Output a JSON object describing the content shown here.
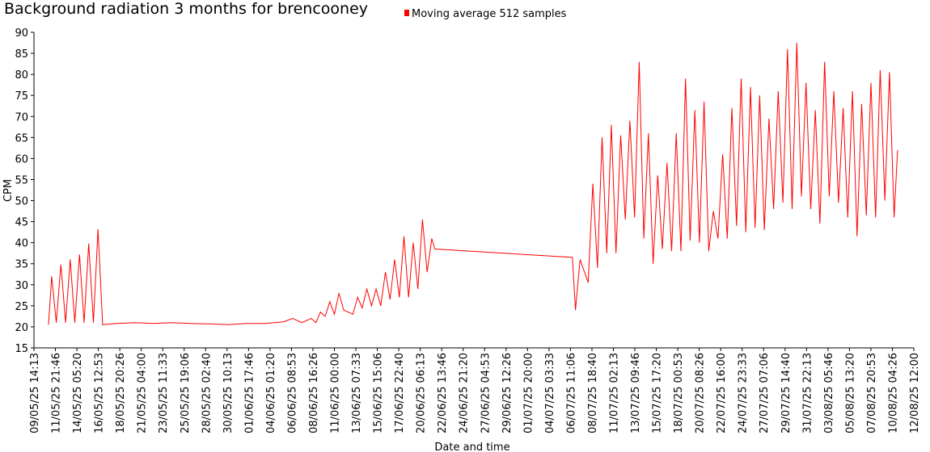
{
  "chart_data": {
    "type": "line",
    "title": "Background radiation 3 months for brencooney",
    "x_label": "Date and time",
    "y_label": "CPM",
    "xlim": [
      "09/05/25 14:13",
      "12/08/25 12:00"
    ],
    "xticks": [
      "09/05/25 14:13",
      "11/05/25 21:46",
      "14/05/25 05:20",
      "16/05/25 12:53",
      "18/05/25 20:26",
      "21/05/25 04:00",
      "23/05/25 11:33",
      "25/05/25 19:06",
      "28/05/25 02:40",
      "30/05/25 10:13",
      "01/06/25 17:46",
      "04/06/25 01:20",
      "06/06/25 08:53",
      "08/06/25 16:26",
      "11/06/25 00:00",
      "13/06/25 07:33",
      "15/06/25 15:06",
      "17/06/25 22:40",
      "20/06/25 06:13",
      "22/06/25 13:46",
      "24/06/25 21:20",
      "27/06/25 04:53",
      "29/06/25 12:26",
      "01/07/25 20:00",
      "04/07/25 03:33",
      "06/07/25 11:06",
      "08/07/25 18:40",
      "11/07/25 02:13",
      "13/07/25 09:46",
      "15/07/25 17:20",
      "18/07/25 00:53",
      "20/07/25 08:26",
      "22/07/25 16:00",
      "24/07/25 23:33",
      "27/07/25 07:06",
      "29/07/25 14:40",
      "31/07/25 22:13",
      "03/08/25 05:46",
      "05/08/25 13:20",
      "07/08/25 20:53",
      "10/08/25 04:26",
      "12/08/25 12:00"
    ],
    "ylim": [
      15,
      90
    ],
    "yticks": [
      15,
      20,
      25,
      30,
      35,
      40,
      45,
      50,
      55,
      60,
      65,
      70,
      75,
      80,
      85,
      90
    ],
    "legend": "top",
    "x": [
      "11/05/25 04:00",
      "11/05/25 12:00",
      "12/05/25 00:00",
      "12/05/25 12:00",
      "13/05/25 00:00",
      "13/05/25 12:00",
      "14/05/25 00:00",
      "14/05/25 12:00",
      "15/05/25 00:00",
      "15/05/25 12:00",
      "16/05/25 00:00",
      "16/05/25 12:00",
      "17/05/25 00:00",
      "18/05/25 12:00",
      "20/05/25 12:00",
      "22/05/25 12:00",
      "24/05/25 12:00",
      "26/05/25 12:00",
      "28/05/25 12:00",
      "30/05/25 12:00",
      "01/06/25 12:00",
      "03/06/25 12:00",
      "05/06/25 12:00",
      "06/06/25 12:00",
      "07/06/25 12:00",
      "08/06/25 12:00",
      "09/06/25 00:00",
      "09/06/25 12:00",
      "10/06/25 00:00",
      "10/06/25 12:00",
      "11/06/25 00:00",
      "11/06/25 12:00",
      "12/06/25 00:00",
      "12/06/25 12:00",
      "13/06/25 00:00",
      "13/06/25 12:00",
      "14/06/25 00:00",
      "14/06/25 12:00",
      "15/06/25 00:00",
      "15/06/25 12:00",
      "16/06/25 00:00",
      "16/06/25 12:00",
      "17/06/25 00:00",
      "17/06/25 12:00",
      "18/06/25 00:00",
      "18/06/25 12:00",
      "19/06/25 00:00",
      "19/06/25 12:00",
      "20/06/25 00:00",
      "20/06/25 12:00",
      "21/06/25 00:00",
      "21/06/25 12:00",
      "21/06/25 20:00",
      "06/07/25 16:00",
      "07/07/25 00:00",
      "07/07/25 12:00",
      "08/07/25 09:00",
      "08/07/25 21:00",
      "09/07/25 09:00",
      "09/07/25 21:00",
      "10/07/25 09:00",
      "10/07/25 21:00",
      "11/07/25 09:00",
      "11/07/25 21:00",
      "12/07/25 09:00",
      "12/07/25 21:00",
      "13/07/25 09:00",
      "13/07/25 21:00",
      "14/07/25 09:00",
      "14/07/25 21:00",
      "15/07/25 09:00",
      "15/07/25 21:00",
      "16/07/25 09:00",
      "16/07/25 21:00",
      "17/07/25 09:00",
      "17/07/25 21:00",
      "18/07/25 09:00",
      "18/07/25 21:00",
      "19/07/25 09:00",
      "19/07/25 21:00",
      "20/07/25 09:00",
      "20/07/25 21:00",
      "21/07/25 09:00",
      "21/07/25 21:00",
      "22/07/25 09:00",
      "22/07/25 21:00",
      "23/07/25 09:00",
      "23/07/25 21:00",
      "24/07/25 09:00",
      "24/07/25 21:00",
      "25/07/25 09:00",
      "25/07/25 21:00",
      "26/07/25 09:00",
      "26/07/25 21:00",
      "27/07/25 09:00",
      "27/07/25 21:00",
      "28/07/25 09:00",
      "28/07/25 21:00",
      "29/07/25 09:00",
      "29/07/25 21:00",
      "30/07/25 09:00",
      "30/07/25 21:00",
      "31/07/25 09:00",
      "31/07/25 21:00",
      "01/08/25 09:00",
      "01/08/25 21:00",
      "02/08/25 09:00",
      "02/08/25 21:00",
      "03/08/25 09:00",
      "03/08/25 21:00",
      "04/08/25 09:00",
      "04/08/25 21:00",
      "05/08/25 09:00",
      "05/08/25 21:00",
      "06/08/25 09:00",
      "06/08/25 21:00",
      "07/08/25 09:00",
      "07/08/25 21:00",
      "08/08/25 09:00",
      "08/08/25 21:00",
      "09/08/25 09:00",
      "09/08/25 21:00",
      "10/08/25 09:00",
      "10/08/25 18:00"
    ],
    "series": [
      {
        "name": "Moving average 512 samples",
        "color": "#ff0000",
        "values": [
          20.5,
          32,
          21,
          34.8,
          21,
          36,
          21,
          37.2,
          21,
          39.8,
          21,
          43.2,
          20.5,
          20.8,
          21,
          20.8,
          21,
          20.8,
          20.7,
          20.5,
          20.8,
          20.8,
          21.2,
          22,
          21,
          22,
          21,
          23.5,
          22.5,
          26,
          23,
          28,
          24,
          23.5,
          23,
          27,
          24.5,
          29,
          25,
          29,
          25,
          33,
          26.5,
          36,
          27,
          41.5,
          27,
          40,
          29,
          45.5,
          33,
          41,
          38.5,
          36.5,
          24,
          36,
          30.5,
          54,
          34,
          65,
          37.5,
          68,
          37.5,
          65.5,
          45.5,
          69,
          46,
          83,
          41,
          66,
          35,
          56,
          38.5,
          59,
          38,
          66,
          38,
          79,
          40.5,
          71.5,
          40,
          73.5,
          38,
          47.5,
          41,
          61,
          41,
          72,
          44,
          79,
          42.5,
          77,
          43.5,
          75,
          43,
          69.5,
          48,
          76,
          49.5,
          86,
          48,
          87.5,
          51,
          78,
          48,
          71.5,
          44.5,
          83,
          51,
          76,
          49.5,
          72,
          46,
          76,
          41.5,
          73,
          46.5,
          78,
          46,
          81,
          50,
          80.5,
          46,
          62
        ]
      }
    ]
  }
}
